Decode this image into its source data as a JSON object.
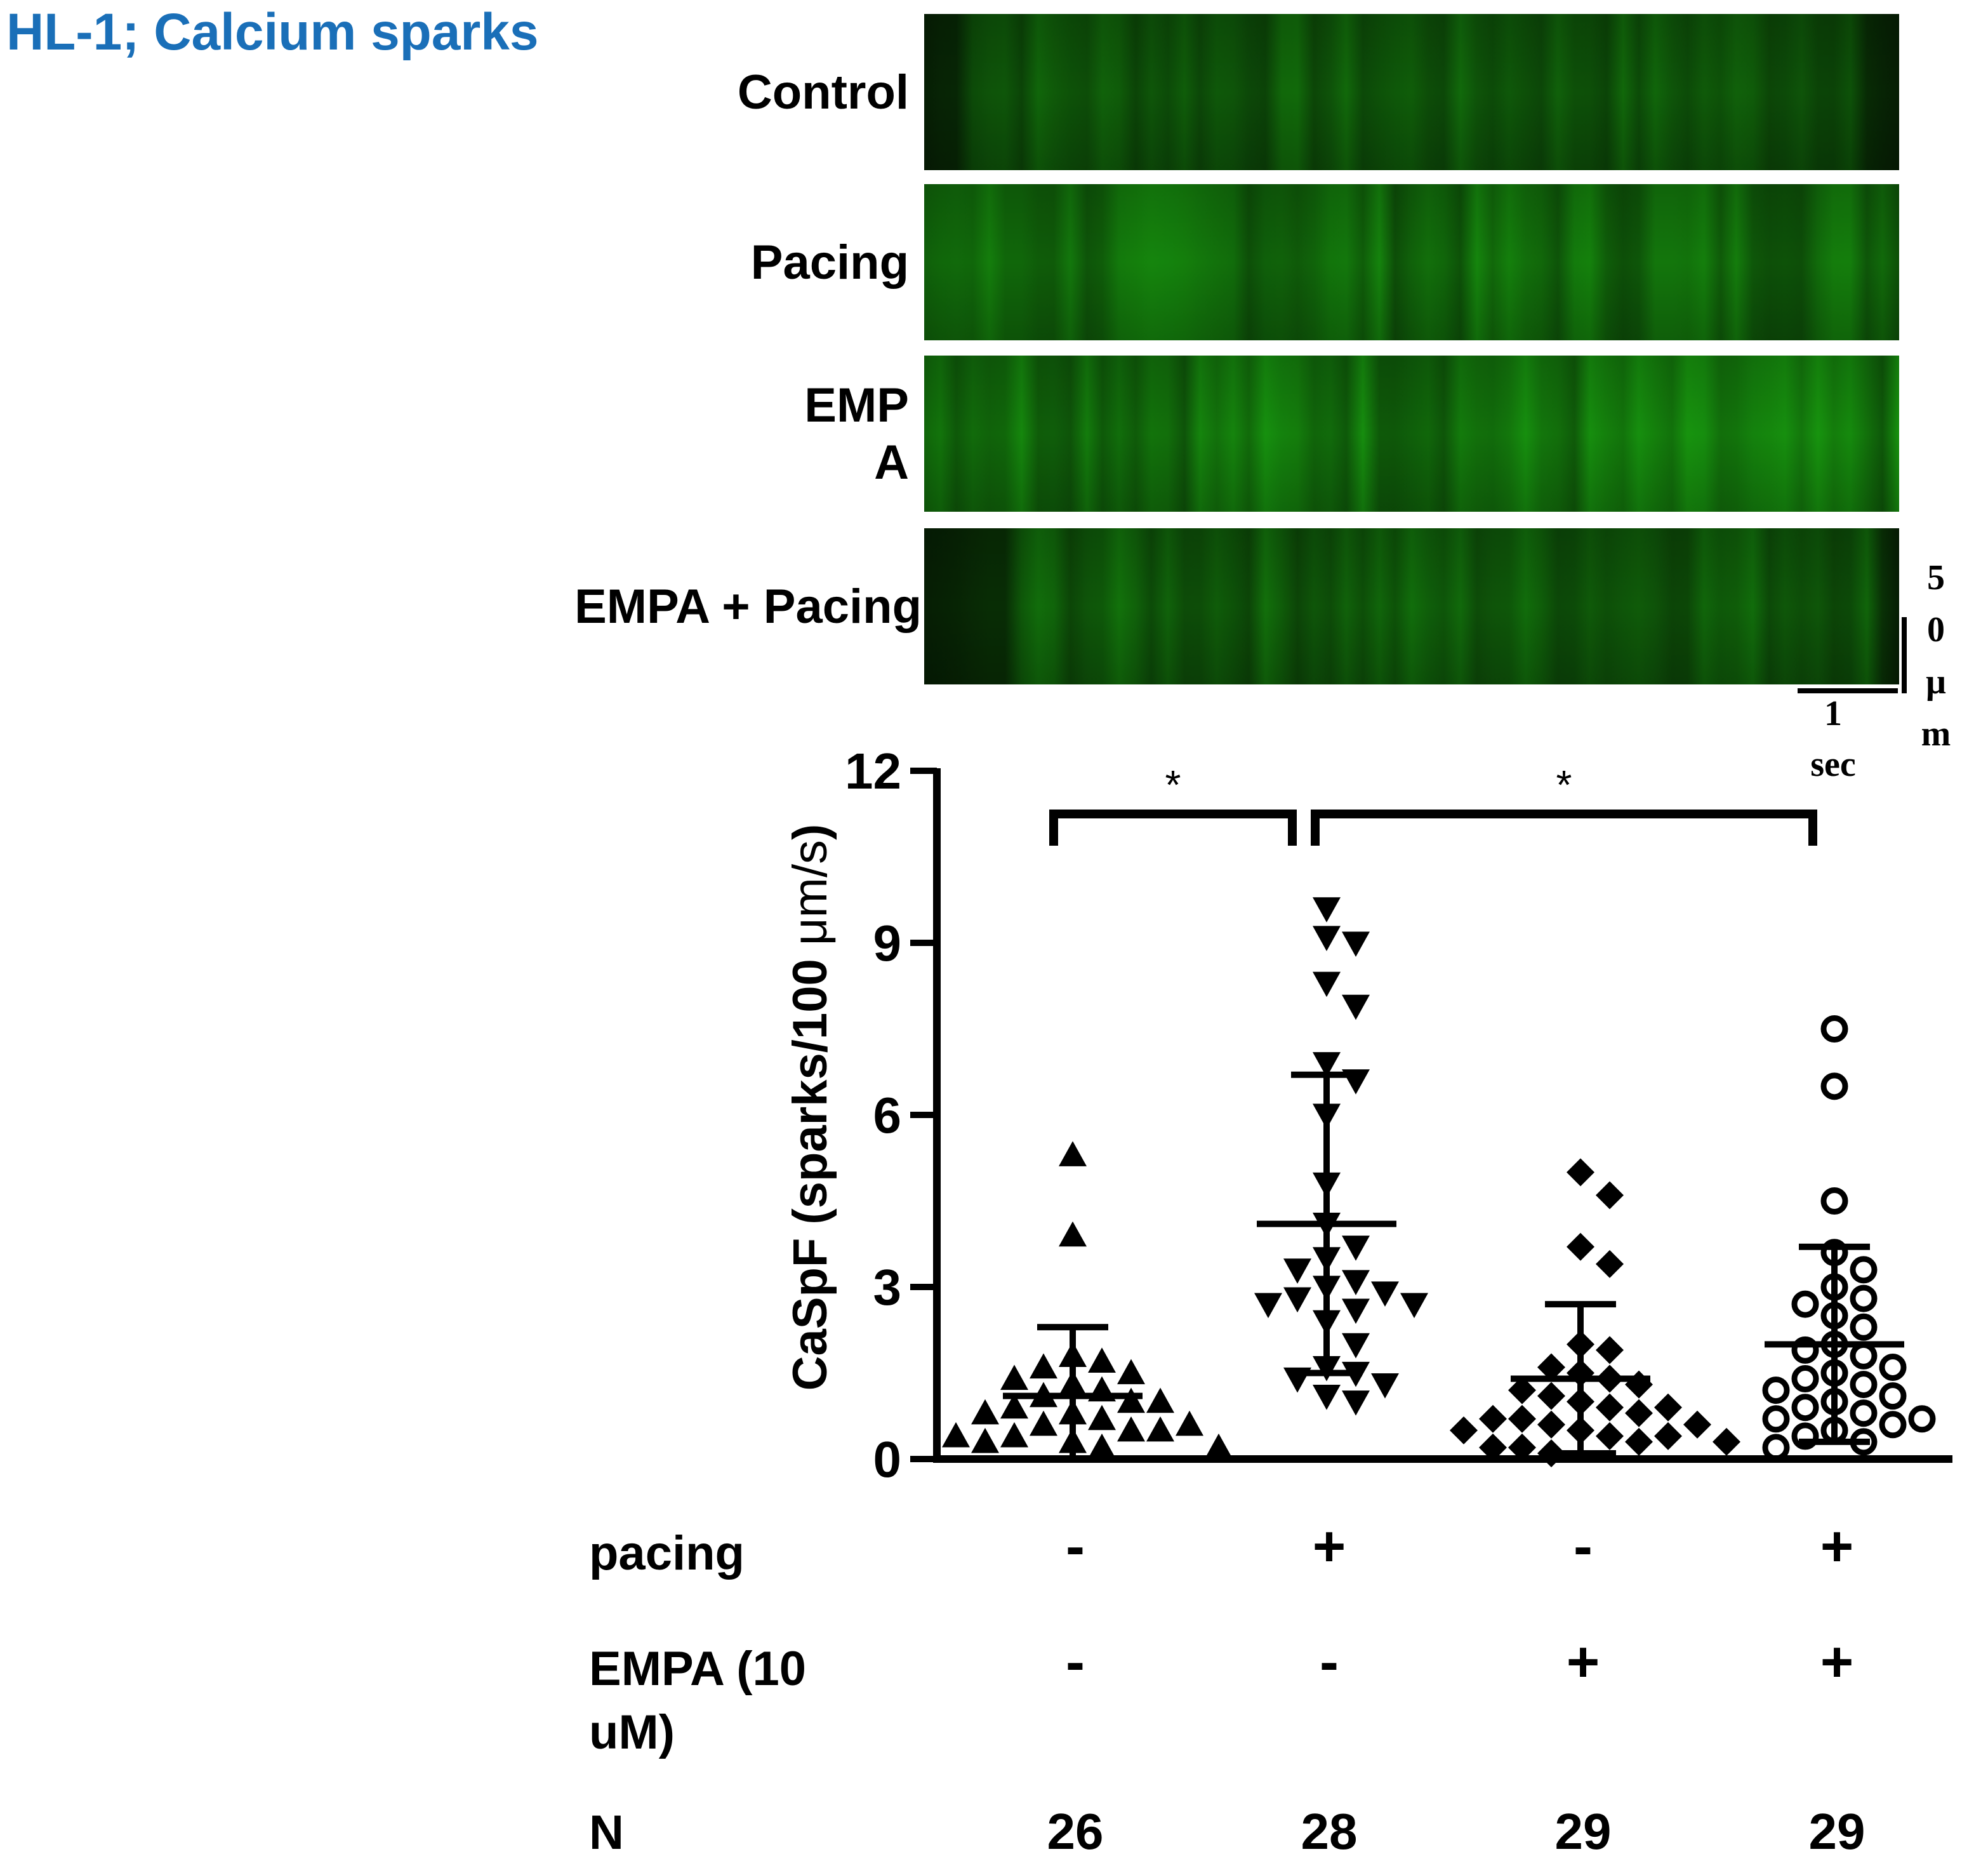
{
  "figure_title": "HL-1; Calcium sparks",
  "colors": {
    "title": "#1a6fb8",
    "fluorescence": "#1fa01f",
    "ink": "#000000"
  },
  "linescans": {
    "panels": [
      {
        "label_lines": [
          "Control"
        ],
        "brightness": 0.55,
        "dark_left": 0.05,
        "dark_right": 0.05
      },
      {
        "label_lines": [
          "Pacing"
        ],
        "brightness": 0.75,
        "dark_left": 0.0,
        "dark_right": 0.0
      },
      {
        "label_lines": [
          "EMP",
          "A"
        ],
        "brightness": 0.85,
        "dark_left": 0.0,
        "dark_right": 0.0
      },
      {
        "label_lines": [
          "EMPA + Pacing"
        ],
        "brightness": 0.6,
        "dark_left": 0.1,
        "dark_right": 0.02
      }
    ],
    "scale_bar": {
      "vertical_label_chars": [
        "5",
        "0",
        "μ",
        "m"
      ],
      "horizontal_label_lines": [
        "1",
        "sec"
      ]
    }
  },
  "chart_data": {
    "type": "scatter",
    "title": "",
    "ylabel_prefix": "CaSpF (sparks/100 ",
    "ylabel_unit": "μm/s",
    "ylabel_suffix": ")",
    "ylim": [
      0,
      12
    ],
    "yticks": [
      "0",
      "3",
      "6",
      "9",
      "12"
    ],
    "groups": [
      {
        "marker": "triangle-up",
        "mean": 1.1,
        "sd": 1.2,
        "values": [
          5.3,
          3.9,
          1.8,
          1.7,
          1.6,
          1.5,
          1.4,
          1.3,
          1.2,
          1.1,
          1.0,
          1.0,
          0.9,
          0.8,
          0.8,
          0.7,
          0.6,
          0.6,
          0.5,
          0.5,
          0.4,
          0.4,
          0.3,
          0.3,
          0.2,
          0.2
        ]
      },
      {
        "marker": "triangle-down",
        "mean": 4.1,
        "sd": 2.6,
        "values": [
          9.6,
          9.1,
          9.0,
          8.3,
          7.9,
          6.9,
          6.6,
          6.0,
          4.8,
          4.1,
          3.7,
          3.5,
          3.3,
          3.1,
          3.0,
          2.9,
          2.8,
          2.7,
          2.7,
          2.6,
          2.4,
          2.0,
          1.6,
          1.5,
          1.4,
          1.3,
          1.1,
          1.0
        ]
      },
      {
        "marker": "diamond",
        "mean": 1.4,
        "sd": 1.3,
        "values": [
          5.0,
          4.6,
          3.7,
          3.4,
          2.0,
          1.9,
          1.6,
          1.5,
          1.4,
          1.3,
          1.2,
          1.1,
          1.0,
          0.9,
          0.9,
          0.8,
          0.7,
          0.7,
          0.6,
          0.6,
          0.5,
          0.5,
          0.4,
          0.4,
          0.3,
          0.3,
          0.2,
          0.2,
          0.1
        ]
      },
      {
        "marker": "circle-open",
        "mean": 2.0,
        "sd": 1.7,
        "values": [
          7.5,
          6.5,
          4.5,
          3.6,
          3.3,
          3.0,
          2.8,
          2.7,
          2.5,
          2.3,
          2.0,
          1.9,
          1.8,
          1.6,
          1.5,
          1.4,
          1.3,
          1.2,
          1.1,
          1.0,
          0.9,
          0.8,
          0.7,
          0.7,
          0.6,
          0.5,
          0.4,
          0.3,
          0.2
        ]
      }
    ],
    "significance": [
      {
        "from": 0,
        "to": 1,
        "label": "*"
      },
      {
        "from": 1,
        "to": 3,
        "label": "*"
      }
    ]
  },
  "conditions": {
    "rows": [
      {
        "label_lines": [
          "pacing"
        ],
        "values": [
          "-",
          "+",
          "-",
          "+"
        ]
      },
      {
        "label_lines": [
          "EMPA (10",
          "uM)"
        ],
        "values": [
          "-",
          "-",
          "+",
          "+"
        ]
      },
      {
        "label_lines": [
          "N"
        ],
        "values": [
          "26",
          "28",
          "29",
          "29"
        ]
      }
    ]
  }
}
